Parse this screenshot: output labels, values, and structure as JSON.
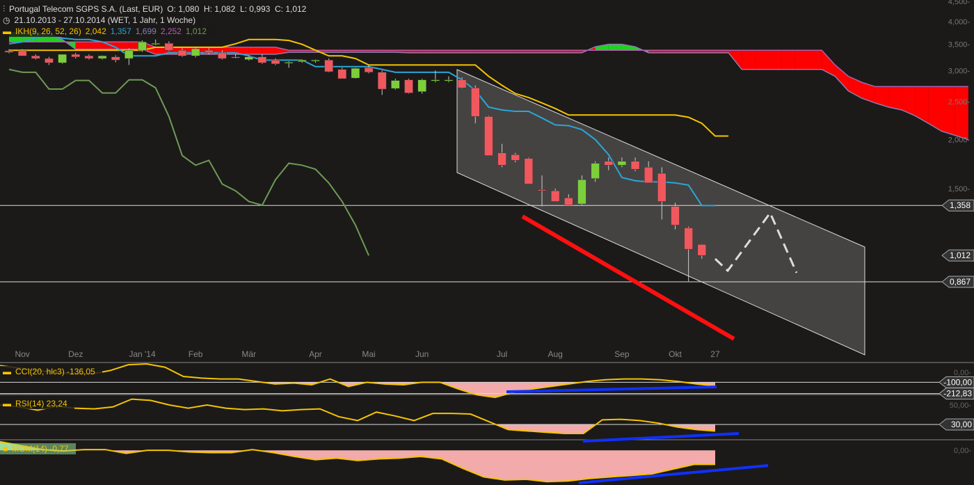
{
  "header": {
    "title": "Portugal Telecom SGPS S.A. (Last, EUR)",
    "ohlc": "O: 1,080  H: 1,082  L: 0,993  C: 1,012",
    "period": "21.10.2013 - 27.10.2014 (WET, 1 Jahr, 1 Woche)",
    "ikh_label": "IKH(9, 26, 52, 26)",
    "ikh_values": [
      "2,042",
      "1,357",
      "1,699",
      "2,252",
      "1,012"
    ]
  },
  "colors": {
    "up": "#7ccf3a",
    "down": "#f0585e",
    "tenkan": "#2aa6d8",
    "kijun": "#f5c400",
    "chikou": "#6f9a55",
    "cloud_bear": "#ff0000",
    "cloud_bull": "#22d022",
    "indicator": "#f5c400",
    "neg_fill": "#f2aaaa",
    "trend_blue": "#1030ff",
    "trend_red": "#ff1010"
  },
  "chart_data": [
    {
      "type": "candlestick",
      "scale": "log",
      "ylim": [
        0.85,
        4.6
      ],
      "yticks": [
        "4,500",
        "4,000",
        "3,500",
        "3,000",
        "2,500",
        "2,000",
        "1,500"
      ],
      "ytick_values": [
        4.5,
        4.0,
        3.5,
        3.0,
        2.5,
        2.0,
        1.5
      ],
      "xticks": [
        {
          "label": "Nov",
          "week": 1
        },
        {
          "label": "Dez",
          "week": 5
        },
        {
          "label": "Jan '14",
          "week": 10
        },
        {
          "label": "Feb",
          "week": 14
        },
        {
          "label": "Mär",
          "week": 18
        },
        {
          "label": "Apr",
          "week": 23
        },
        {
          "label": "Mai",
          "week": 27
        },
        {
          "label": "Jun",
          "week": 31
        },
        {
          "label": "Jul",
          "week": 37
        },
        {
          "label": "Aug",
          "week": 41
        },
        {
          "label": "Sep",
          "week": 46
        },
        {
          "label": "Okt",
          "week": 50
        },
        {
          "label": "27",
          "week": 53
        }
      ],
      "candles": [
        [
          3.37,
          3.4,
          3.32,
          3.34
        ],
        [
          3.37,
          3.4,
          3.28,
          3.27
        ],
        [
          3.27,
          3.3,
          3.2,
          3.22
        ],
        [
          3.22,
          3.25,
          3.1,
          3.14
        ],
        [
          3.14,
          3.3,
          3.12,
          3.3
        ],
        [
          3.3,
          3.33,
          3.22,
          3.25
        ],
        [
          3.27,
          3.3,
          3.2,
          3.22
        ],
        [
          3.22,
          3.28,
          3.2,
          3.27
        ],
        [
          3.25,
          3.28,
          3.15,
          3.19
        ],
        [
          3.22,
          3.42,
          3.1,
          3.38
        ],
        [
          3.38,
          3.58,
          3.35,
          3.55
        ],
        [
          3.52,
          3.6,
          3.48,
          3.52
        ],
        [
          3.52,
          3.56,
          3.36,
          3.38
        ],
        [
          3.38,
          3.42,
          3.25,
          3.27
        ],
        [
          3.27,
          3.45,
          3.24,
          3.41
        ],
        [
          3.38,
          3.42,
          3.3,
          3.33
        ],
        [
          3.33,
          3.38,
          3.2,
          3.22
        ],
        [
          3.25,
          3.3,
          3.22,
          3.24
        ],
        [
          3.2,
          3.28,
          3.18,
          3.25
        ],
        [
          3.25,
          3.3,
          3.12,
          3.14
        ],
        [
          3.19,
          3.22,
          3.1,
          3.12
        ],
        [
          3.15,
          3.17,
          3.05,
          3.15
        ],
        [
          3.16,
          3.2,
          3.14,
          3.19
        ],
        [
          3.17,
          3.2,
          3.14,
          3.19
        ],
        [
          3.19,
          3.22,
          2.97,
          2.98
        ],
        [
          3.02,
          3.05,
          2.86,
          2.86
        ],
        [
          2.87,
          3.05,
          2.86,
          3.04
        ],
        [
          3.05,
          3.1,
          2.95,
          2.97
        ],
        [
          2.97,
          3.0,
          2.6,
          2.69
        ],
        [
          2.7,
          2.86,
          2.68,
          2.83
        ],
        [
          2.84,
          2.86,
          2.62,
          2.63
        ],
        [
          2.65,
          2.86,
          2.62,
          2.84
        ],
        [
          2.84,
          3.0,
          2.8,
          2.84
        ],
        [
          2.84,
          2.9,
          2.8,
          2.84
        ],
        [
          2.84,
          2.88,
          2.7,
          2.71
        ],
        [
          2.71,
          2.75,
          2.2,
          2.29
        ],
        [
          2.29,
          2.3,
          1.82,
          1.82
        ],
        [
          1.85,
          1.95,
          1.7,
          1.72
        ],
        [
          1.83,
          1.85,
          1.75,
          1.77
        ],
        [
          1.79,
          1.8,
          1.54,
          1.54
        ],
        [
          1.49,
          1.62,
          1.35,
          1.48
        ],
        [
          1.48,
          1.5,
          1.39,
          1.39
        ],
        [
          1.42,
          1.45,
          1.36,
          1.36
        ],
        [
          1.37,
          1.62,
          1.36,
          1.58
        ],
        [
          1.59,
          1.76,
          1.56,
          1.74
        ],
        [
          1.76,
          1.8,
          1.67,
          1.72
        ],
        [
          1.72,
          1.8,
          1.7,
          1.76
        ],
        [
          1.76,
          1.8,
          1.66,
          1.68
        ],
        [
          1.7,
          1.76,
          1.55,
          1.55
        ],
        [
          1.64,
          1.7,
          1.25,
          1.39
        ],
        [
          1.35,
          1.38,
          1.18,
          1.21
        ],
        [
          1.19,
          1.2,
          0.87,
          1.05
        ],
        [
          1.08,
          1.082,
          0.993,
          1.012
        ]
      ],
      "tenkan": [
        3.51,
        3.55,
        3.63,
        3.7,
        3.63,
        3.6,
        3.6,
        3.55,
        3.44,
        3.27,
        3.27,
        3.27,
        3.33,
        3.33,
        3.33,
        3.33,
        3.33,
        3.33,
        3.27,
        3.19,
        3.19,
        3.19,
        3.19,
        3.07,
        3.07,
        3.07,
        3.07,
        3.07,
        3.02,
        2.97,
        2.97,
        2.97,
        2.97,
        2.97,
        2.84,
        2.67,
        2.42,
        2.38,
        2.36,
        2.36,
        2.27,
        2.18,
        2.17,
        2.12,
        2.0,
        1.83,
        1.6,
        1.57,
        1.56,
        1.56,
        1.55,
        1.53,
        1.357,
        1.357
      ],
      "kijun": [
        3.38,
        3.38,
        3.38,
        3.38,
        3.38,
        3.38,
        3.38,
        3.38,
        3.38,
        3.38,
        3.38,
        3.44,
        3.44,
        3.44,
        3.44,
        3.44,
        3.44,
        3.51,
        3.6,
        3.6,
        3.6,
        3.58,
        3.5,
        3.38,
        3.27,
        3.27,
        3.22,
        3.1,
        3.1,
        3.1,
        3.1,
        3.1,
        3.1,
        3.1,
        3.1,
        3.1,
        2.9,
        2.75,
        2.62,
        2.56,
        2.48,
        2.4,
        2.31,
        2.31,
        2.31,
        2.31,
        2.31,
        2.31,
        2.31,
        2.31,
        2.31,
        2.28,
        2.2,
        2.042,
        2.042
      ],
      "chikou": [
        3.02,
        2.97,
        2.97,
        2.69,
        2.69,
        2.83,
        2.83,
        2.63,
        2.63,
        2.84,
        2.84,
        2.71,
        2.29,
        1.82,
        1.72,
        1.77,
        1.54,
        1.48,
        1.39,
        1.36,
        1.58,
        1.74,
        1.72,
        1.68,
        1.55,
        1.39,
        1.21,
        1.012
      ],
      "span_a": [
        3.75,
        3.75,
        3.75,
        3.7,
        3.6,
        3.4,
        3.4,
        3.4,
        3.4,
        3.4,
        3.4,
        3.3,
        3.3,
        3.3,
        3.3,
        3.3,
        3.3,
        3.3,
        3.3,
        3.3,
        3.3,
        3.34,
        3.34,
        3.34,
        3.34,
        3.34,
        3.34,
        3.34,
        3.34,
        3.34,
        3.33,
        3.33,
        3.33,
        3.33,
        3.33,
        3.33,
        3.33,
        3.33,
        3.33,
        3.33,
        3.33,
        3.33,
        3.33,
        3.33,
        3.45,
        3.5,
        3.5,
        3.45,
        3.33,
        3.33,
        3.33,
        3.33,
        3.33,
        3.33,
        3.33,
        3.02,
        3.02,
        3.02,
        3.02,
        3.02,
        3.02,
        3.02,
        2.9,
        2.66,
        2.55,
        2.48,
        2.42,
        2.38,
        2.3,
        2.2,
        2.1,
        2.05,
        2.0
      ],
      "span_b": [
        3.55,
        3.55,
        3.55,
        3.55,
        3.55,
        3.55,
        3.55,
        3.55,
        3.55,
        3.55,
        3.55,
        3.44,
        3.44,
        3.44,
        3.44,
        3.44,
        3.44,
        3.44,
        3.44,
        3.44,
        3.44,
        3.38,
        3.38,
        3.38,
        3.38,
        3.38,
        3.38,
        3.38,
        3.38,
        3.38,
        3.38,
        3.38,
        3.38,
        3.38,
        3.38,
        3.38,
        3.38,
        3.38,
        3.38,
        3.38,
        3.38,
        3.38,
        3.38,
        3.38,
        3.38,
        3.38,
        3.38,
        3.38,
        3.38,
        3.38,
        3.38,
        3.38,
        3.38,
        3.38,
        3.38,
        3.38,
        3.38,
        3.38,
        3.38,
        3.38,
        3.38,
        3.38,
        3.1,
        2.9,
        2.8,
        2.73,
        2.73,
        2.73,
        2.73,
        2.73,
        2.73,
        2.73,
        2.73
      ],
      "price_lines": [
        {
          "label": "1,358",
          "value": 1.358
        },
        {
          "label": "0,867",
          "value": 0.867
        }
      ],
      "last_price": {
        "label": "1,012",
        "value": 1.012
      }
    },
    {
      "type": "line",
      "name": "CCI(20, hlc3)",
      "legend": "CCI(20, hlc3)  -136,05",
      "ylim": [
        -215,
        90
      ],
      "yticks": [
        "0,00"
      ],
      "ytick_values": [
        0
      ],
      "levels": [
        {
          "label": "-100,00",
          "value": -100
        },
        {
          "label": "-212,83",
          "value": -212.83
        }
      ],
      "values": [
        67,
        42,
        17,
        0,
        -17,
        -17,
        17,
        75,
        83,
        50,
        -42,
        -58,
        -67,
        -67,
        -92,
        -117,
        -108,
        -125,
        -67,
        -142,
        -100,
        -117,
        -125,
        -100,
        -100,
        -167,
        -225,
        -250,
        -200,
        -167,
        -142,
        -117,
        -92,
        -75,
        -67,
        -67,
        -75,
        -92,
        -117,
        -136.05
      ]
    },
    {
      "type": "line",
      "name": "RSI(14)",
      "legend": "RSI(14)  23,24",
      "ylim": [
        15,
        60
      ],
      "yticks": [
        "50,00"
      ],
      "ytick_values": [
        50
      ],
      "levels": [
        {
          "label": "30,00",
          "value": 30
        }
      ],
      "values": [
        50,
        48,
        44.7,
        48.7,
        46.7,
        46,
        48,
        56,
        54.7,
        50,
        46.7,
        50,
        46.7,
        45.3,
        46,
        44,
        45.3,
        46,
        38,
        34,
        42.7,
        38.7,
        34,
        41.3,
        41.3,
        40.7,
        32.7,
        24.7,
        23.3,
        22,
        20.7,
        20.7,
        34.7,
        35.3,
        34,
        31.3,
        27.3,
        24.7,
        23.24
      ]
    },
    {
      "type": "area",
      "name": "MOM(14)",
      "legend": "MOM(14)  -0,77",
      "ylim": [
        -1.9,
        0.5
      ],
      "yticks": [
        "0,00"
      ],
      "ytick_values": [
        0
      ],
      "values": [
        0.47,
        0.26,
        0.04,
        -0.04,
        0.04,
        0.04,
        -0.17,
        0,
        0,
        -0.09,
        -0.13,
        -0.13,
        0.04,
        -0.13,
        -0.34,
        -0.52,
        -0.43,
        -0.56,
        -0.47,
        -0.43,
        -0.34,
        -0.47,
        -0.99,
        -1.46,
        -1.63,
        -1.59,
        -1.72,
        -1.68,
        -1.55,
        -1.46,
        -1.38,
        -1.29,
        -1.03,
        -0.77,
        -0.77
      ]
    }
  ]
}
